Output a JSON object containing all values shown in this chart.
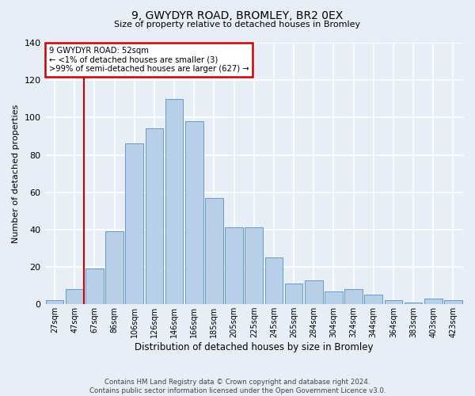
{
  "title_line1": "9, GWYDYR ROAD, BROMLEY, BR2 0EX",
  "title_line2": "Size of property relative to detached houses in Bromley",
  "xlabel": "Distribution of detached houses by size in Bromley",
  "ylabel": "Number of detached properties",
  "bar_labels": [
    "27sqm",
    "47sqm",
    "67sqm",
    "86sqm",
    "106sqm",
    "126sqm",
    "146sqm",
    "166sqm",
    "185sqm",
    "205sqm",
    "225sqm",
    "245sqm",
    "265sqm",
    "284sqm",
    "304sqm",
    "324sqm",
    "344sqm",
    "364sqm",
    "383sqm",
    "403sqm",
    "423sqm"
  ],
  "bar_values": [
    2,
    8,
    19,
    39,
    86,
    94,
    110,
    98,
    57,
    41,
    41,
    25,
    11,
    13,
    7,
    8,
    5,
    2,
    1,
    3,
    2
  ],
  "bar_color": "#b8cfe8",
  "bar_edge_color": "#6699cc",
  "background_color": "#e8eef5",
  "grid_color": "#ffffff",
  "annotation_text_line1": "9 GWYDYR ROAD: 52sqm",
  "annotation_text_line2": "← <1% of detached houses are smaller (3)",
  "annotation_text_line3": ">99% of semi-detached houses are larger (627) →",
  "annotation_box_color": "#ffffff",
  "annotation_border_color": "#cc0000",
  "vline_color": "#cc0000",
  "ylim": [
    0,
    140
  ],
  "yticks": [
    0,
    20,
    40,
    60,
    80,
    100,
    120,
    140
  ],
  "footer_line1": "Contains HM Land Registry data © Crown copyright and database right 2024.",
  "footer_line2": "Contains public sector information licensed under the Open Government Licence v3.0."
}
